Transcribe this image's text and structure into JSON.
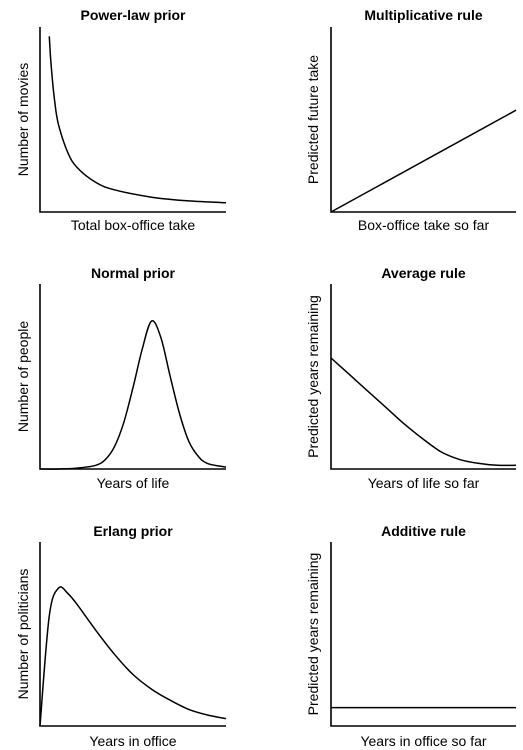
{
  "chart_data": [
    {
      "type": "line",
      "title": "Power-law prior",
      "xlabel": "Total box-office take",
      "ylabel": "Number of movies",
      "shape": "power-law decay",
      "x": [
        0.05,
        0.06,
        0.08,
        0.1,
        0.15,
        0.2,
        0.3,
        0.4,
        0.6,
        0.8,
        1.0
      ],
      "y": [
        0.95,
        0.79,
        0.59,
        0.47,
        0.32,
        0.24,
        0.16,
        0.12,
        0.08,
        0.06,
        0.05
      ],
      "xlim": [
        0,
        1
      ],
      "ylim": [
        0,
        1
      ],
      "ticks": false
    },
    {
      "type": "line",
      "title": "Multiplicative rule",
      "xlabel": "Box-office take so far",
      "ylabel": "Predicted future take",
      "shape": "straight line through origin",
      "x": [
        0,
        1
      ],
      "y": [
        0,
        0.55
      ],
      "xlim": [
        0,
        1
      ],
      "ylim": [
        0,
        1
      ],
      "ticks": false
    },
    {
      "type": "line",
      "title": "Normal prior",
      "xlabel": "Years of life",
      "ylabel": "Number of people",
      "shape": "gaussian bell curve",
      "x": [
        0,
        0.1,
        0.2,
        0.3,
        0.35,
        0.4,
        0.45,
        0.5,
        0.55,
        0.6,
        0.65,
        0.7,
        0.75,
        0.8,
        0.85,
        0.9,
        1.0
      ],
      "y": [
        0.0,
        0.0,
        0.005,
        0.02,
        0.05,
        0.12,
        0.25,
        0.44,
        0.65,
        0.8,
        0.71,
        0.5,
        0.3,
        0.15,
        0.07,
        0.03,
        0.01
      ],
      "xlim": [
        0,
        1
      ],
      "ylim": [
        0,
        1
      ],
      "ticks": false
    },
    {
      "type": "line",
      "title": "Average rule",
      "xlabel": "Years of life so far",
      "ylabel": "Predicted years remaining",
      "shape": "decreasing line leveling off",
      "x": [
        0,
        0.1,
        0.2,
        0.3,
        0.4,
        0.5,
        0.6,
        0.7,
        0.8,
        0.9,
        1.0
      ],
      "y": [
        0.6,
        0.51,
        0.42,
        0.33,
        0.24,
        0.16,
        0.09,
        0.05,
        0.03,
        0.02,
        0.02
      ],
      "xlim": [
        0,
        1
      ],
      "ylim": [
        0,
        1
      ],
      "ticks": false
    },
    {
      "type": "line",
      "title": "Erlang prior",
      "xlabel": "Years in office",
      "ylabel": "Number of politicians",
      "shape": "right-skewed Erlang density",
      "x": [
        0,
        0.05,
        0.1,
        0.15,
        0.2,
        0.3,
        0.4,
        0.5,
        0.6,
        0.7,
        0.8,
        0.9,
        1.0
      ],
      "y": [
        0.0,
        0.6,
        0.75,
        0.72,
        0.66,
        0.52,
        0.39,
        0.28,
        0.2,
        0.14,
        0.09,
        0.06,
        0.04
      ],
      "xlim": [
        0,
        1
      ],
      "ylim": [
        0,
        1
      ],
      "ticks": false
    },
    {
      "type": "line",
      "title": "Additive rule",
      "xlabel": "Years in office so far",
      "ylabel": "Predicted years remaining",
      "shape": "horizontal constant line",
      "x": [
        0,
        1
      ],
      "y": [
        0.1,
        0.1
      ],
      "xlim": [
        0,
        1
      ],
      "ylim": [
        0,
        1
      ],
      "ticks": false
    }
  ]
}
